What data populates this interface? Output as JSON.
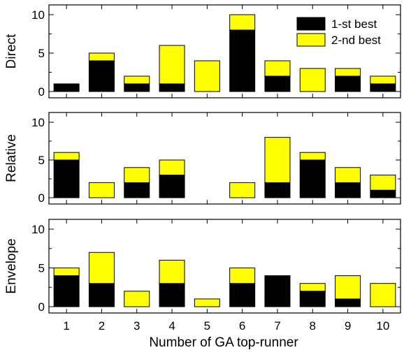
{
  "chart_data": {
    "type": "bar",
    "stacked": true,
    "categories": [
      "1",
      "2",
      "3",
      "4",
      "5",
      "6",
      "7",
      "8",
      "9",
      "10"
    ],
    "xlabel": "Number of GA top-runner",
    "colors": {
      "first": "#000000",
      "second": "#ffff00"
    },
    "legend": {
      "placement": "top-right",
      "entries": [
        "1-st best",
        "2-nd best"
      ]
    },
    "panels": [
      {
        "ylabel": "Direct",
        "ylim": [
          0,
          10
        ],
        "yticks": [
          "0",
          "5",
          "10"
        ],
        "series": [
          {
            "name": "1-st best",
            "values": [
              1,
              4,
              1,
              1,
              0,
              8,
              2,
              0,
              2,
              1
            ]
          },
          {
            "name": "2-nd best",
            "values": [
              0,
              1,
              1,
              5,
              4,
              2,
              2,
              3,
              1,
              1
            ]
          }
        ]
      },
      {
        "ylabel": "Relative",
        "ylim": [
          0,
          10
        ],
        "yticks": [
          "0",
          "5",
          "10"
        ],
        "series": [
          {
            "name": "1-st best",
            "values": [
              5,
              0,
              2,
              3,
              0,
              0,
              2,
              5,
              2,
              1
            ]
          },
          {
            "name": "2-nd best",
            "values": [
              1,
              2,
              2,
              2,
              0,
              2,
              6,
              1,
              2,
              2
            ]
          }
        ]
      },
      {
        "ylabel": "Envelope",
        "ylim": [
          0,
          10
        ],
        "yticks": [
          "0",
          "5",
          "10"
        ],
        "series": [
          {
            "name": "1-st best",
            "values": [
              4,
              3,
              0,
              3,
              0,
              3,
              4,
              2,
              1,
              0
            ]
          },
          {
            "name": "2-nd best",
            "values": [
              1,
              4,
              2,
              3,
              1,
              2,
              0,
              1,
              3,
              3
            ]
          }
        ]
      }
    ]
  }
}
